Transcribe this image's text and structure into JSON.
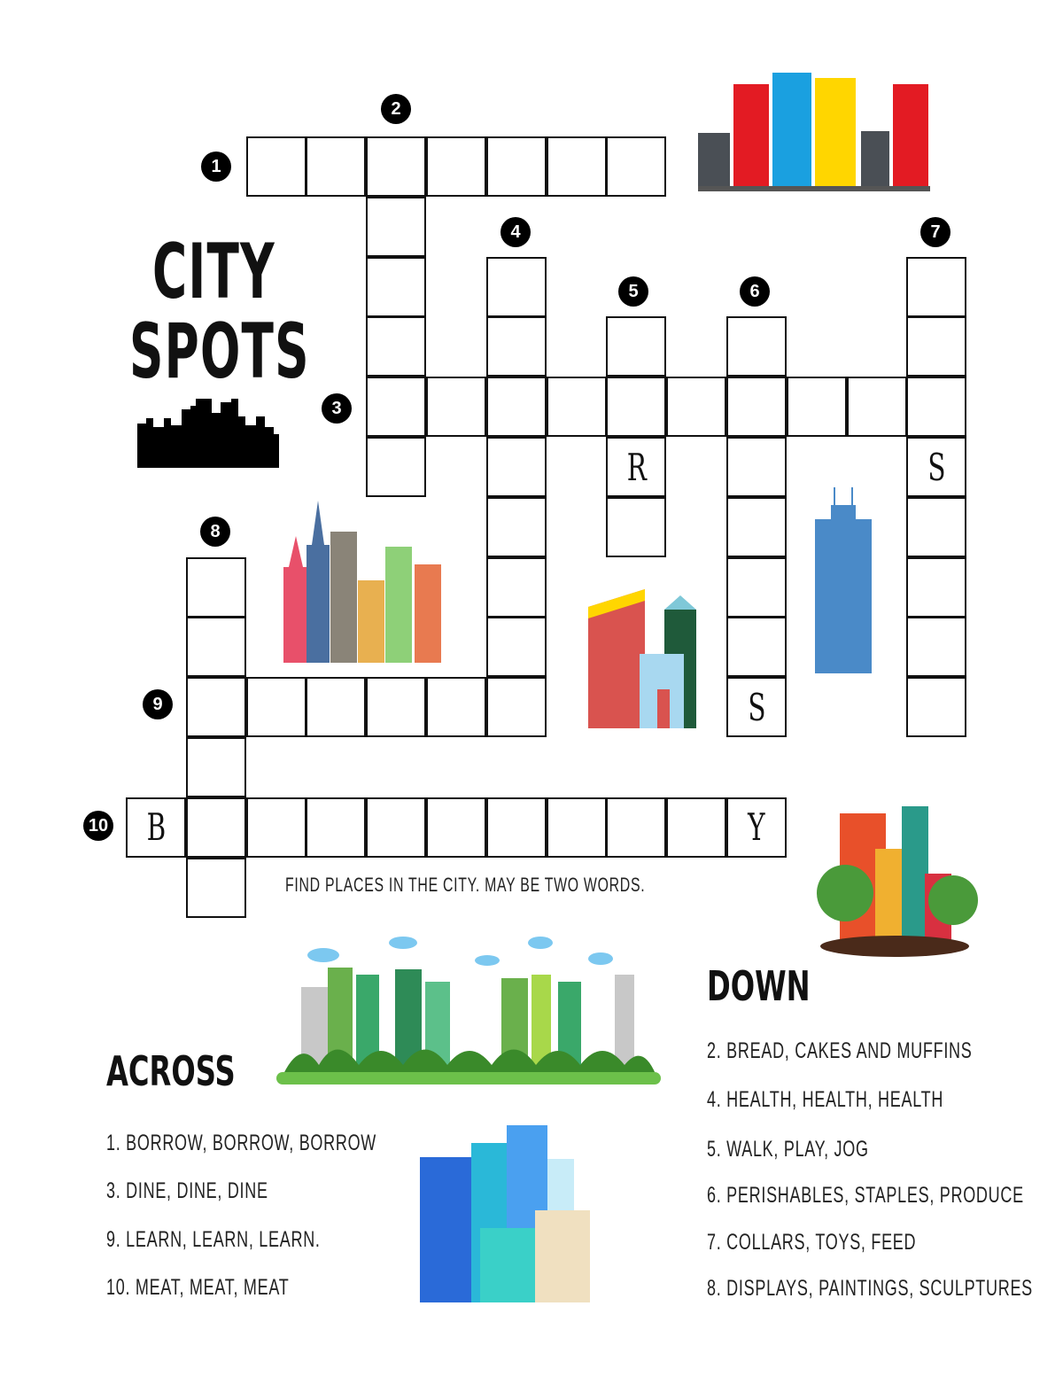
{
  "title": {
    "line1": "CITY",
    "line2": "SPOTS"
  },
  "instructions": "FIND PLACES IN THE CITY. MAY BE TWO WORDS.",
  "entries": [
    {
      "id": "1-across",
      "number": "1"
    },
    {
      "id": "2-down",
      "number": "2"
    },
    {
      "id": "3-across",
      "number": "3"
    },
    {
      "id": "4-down",
      "number": "4"
    },
    {
      "id": "5-down",
      "number": "5"
    },
    {
      "id": "6-down",
      "number": "6"
    },
    {
      "id": "7-down",
      "number": "7"
    },
    {
      "id": "8-down",
      "number": "8"
    },
    {
      "id": "9-across",
      "number": "9"
    },
    {
      "id": "10-across",
      "number": "10"
    }
  ],
  "given_letters": [
    {
      "entry": "5-down",
      "index": 2,
      "letter": "R"
    },
    {
      "entry": "7-down",
      "index": 3,
      "letter": "S"
    },
    {
      "entry": "6-down",
      "index": 6,
      "letter": "S"
    },
    {
      "entry": "10-across",
      "index": 0,
      "letter": "B"
    },
    {
      "entry": "10-across",
      "index": 10,
      "letter": "Y"
    }
  ],
  "across": {
    "heading": "ACROSS",
    "clues": [
      "1. BORROW, BORROW, BORROW",
      "3. DINE, DINE, DINE",
      "9. LEARN, LEARN, LEARN.",
      "10. MEAT, MEAT, MEAT"
    ]
  },
  "down": {
    "heading": "DOWN",
    "clues": [
      "2. BREAD, CAKES AND MUFFINS",
      "4. HEALTH, HEALTH, HEALTH",
      "5. WALK, PLAY, JOG",
      "6. PERISHABLES, STAPLES, PRODUCE",
      "7. COLLARS, TOYS, FEED",
      "8. DISPLAYS, PAINTINGS, SCULPTURES"
    ]
  },
  "illustrations": [
    "city-skyline-colored",
    "skyline-silhouette",
    "skyscrapers-group",
    "colorful-buildings",
    "blue-tower",
    "buildings-with-trees",
    "green-city-park",
    "blue-city-buildings"
  ]
}
